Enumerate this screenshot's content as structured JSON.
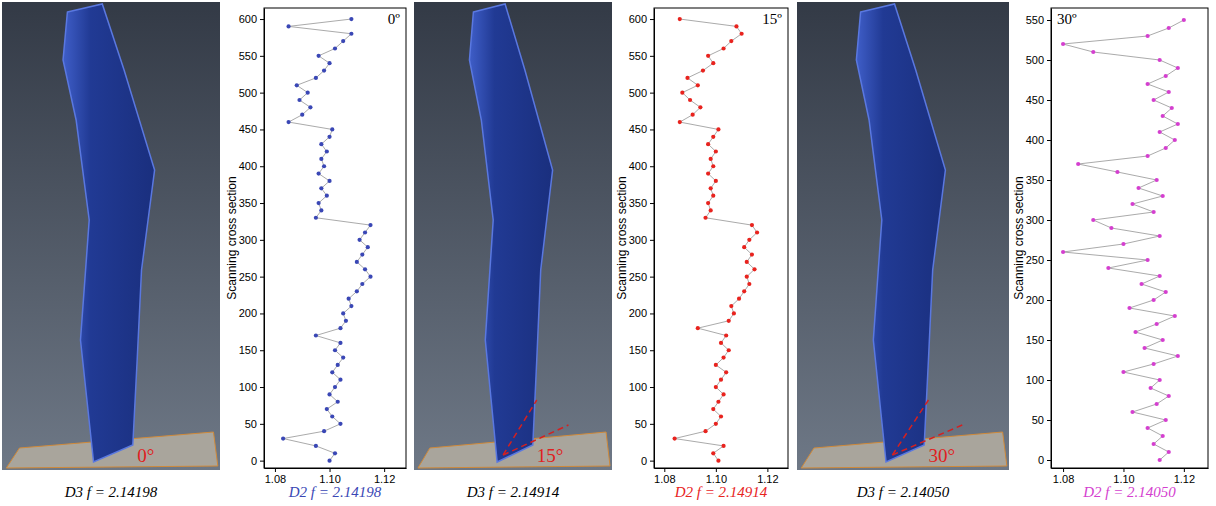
{
  "chart_data": [
    {
      "type": "scatter",
      "marker": "circle",
      "line_style": "solid",
      "color": "#3a47b5",
      "grid": false,
      "ylabel": "Scanning cross section",
      "annotation": "0º",
      "caption": "D2 f = 2.14198",
      "xlim": [
        1.076,
        1.128
      ],
      "xticks": [
        1.08,
        {
          "value": 1.1,
          "label": "1.10"
        },
        1.12
      ],
      "ylim": [
        -10,
        615
      ],
      "yticks": [
        0,
        50,
        100,
        150,
        200,
        250,
        300,
        350,
        400,
        450,
        500,
        550,
        600
      ],
      "x": [
        1.1,
        1.102,
        1.095,
        1.083,
        1.098,
        1.104,
        1.101,
        1.099,
        1.103,
        1.1,
        1.102,
        1.104,
        1.101,
        1.103,
        1.105,
        1.102,
        1.104,
        1.095,
        1.104,
        1.106,
        1.105,
        1.108,
        1.107,
        1.11,
        1.112,
        1.115,
        1.113,
        1.11,
        1.112,
        1.114,
        1.111,
        1.113,
        1.115,
        1.095,
        1.097,
        1.096,
        1.099,
        1.097,
        1.1,
        1.096,
        1.098,
        1.097,
        1.099,
        1.097,
        1.1,
        1.101,
        1.085,
        1.09,
        1.093,
        1.089,
        1.092,
        1.088,
        1.095,
        1.098,
        1.1,
        1.096,
        1.102,
        1.105,
        1.108,
        1.085,
        1.108
      ],
      "values": [
        0,
        10,
        20,
        30,
        40,
        50,
        60,
        70,
        80,
        90,
        100,
        110,
        120,
        130,
        140,
        150,
        160,
        170,
        180,
        190,
        200,
        210,
        220,
        230,
        240,
        250,
        260,
        270,
        280,
        290,
        300,
        310,
        320,
        330,
        340,
        350,
        360,
        370,
        380,
        390,
        400,
        410,
        420,
        430,
        440,
        450,
        460,
        470,
        480,
        490,
        500,
        510,
        520,
        530,
        540,
        550,
        560,
        570,
        580,
        590,
        600
      ]
    },
    {
      "type": "scatter",
      "marker": "circle",
      "line_style": "solid",
      "color": "#e8231e",
      "grid": false,
      "ylabel": "Scanning cross section",
      "annotation": "15º",
      "caption": "D2 f = 2.14914",
      "xlim": [
        1.076,
        1.128
      ],
      "xticks": [
        1.08,
        {
          "value": 1.1,
          "label": "1.10"
        },
        1.12
      ],
      "ylim": [
        -10,
        615
      ],
      "yticks": [
        0,
        50,
        100,
        150,
        200,
        250,
        300,
        350,
        400,
        450,
        500,
        550,
        600
      ],
      "x": [
        1.101,
        1.099,
        1.103,
        1.084,
        1.096,
        1.1,
        1.102,
        1.099,
        1.101,
        1.103,
        1.1,
        1.102,
        1.104,
        1.1,
        1.103,
        1.105,
        1.102,
        1.104,
        1.093,
        1.105,
        1.107,
        1.106,
        1.109,
        1.111,
        1.113,
        1.112,
        1.115,
        1.112,
        1.114,
        1.111,
        1.113,
        1.116,
        1.114,
        1.096,
        1.098,
        1.097,
        1.099,
        1.098,
        1.1,
        1.097,
        1.099,
        1.098,
        1.1,
        1.097,
        1.099,
        1.101,
        1.086,
        1.091,
        1.094,
        1.09,
        1.087,
        1.093,
        1.089,
        1.095,
        1.099,
        1.097,
        1.103,
        1.106,
        1.11,
        1.108,
        1.086
      ],
      "values": [
        0,
        10,
        20,
        30,
        40,
        50,
        60,
        70,
        80,
        90,
        100,
        110,
        120,
        130,
        140,
        150,
        160,
        170,
        180,
        190,
        200,
        210,
        220,
        230,
        240,
        250,
        260,
        270,
        280,
        290,
        300,
        310,
        320,
        330,
        340,
        350,
        360,
        370,
        380,
        390,
        400,
        410,
        420,
        430,
        440,
        450,
        460,
        470,
        480,
        490,
        500,
        510,
        520,
        530,
        540,
        550,
        560,
        570,
        580,
        590,
        600
      ]
    },
    {
      "type": "scatter",
      "marker": "circle",
      "line_style": "solid",
      "color": "#d43fcf",
      "grid": false,
      "ylabel": "Scanning cross section",
      "annotation": "30º",
      "caption": "D2 f = 2.14050",
      "xlim": [
        1.076,
        1.128
      ],
      "xticks": [
        1.08,
        {
          "value": 1.1,
          "label": "1.10"
        },
        1.12
      ],
      "ylim": [
        -10,
        565
      ],
      "yticks": [
        0,
        50,
        100,
        150,
        200,
        250,
        300,
        350,
        400,
        450,
        500,
        550
      ],
      "x": [
        1.112,
        1.115,
        1.11,
        1.113,
        1.108,
        1.114,
        1.103,
        1.111,
        1.115,
        1.109,
        1.112,
        1.1,
        1.11,
        1.118,
        1.107,
        1.113,
        1.104,
        1.111,
        1.117,
        1.102,
        1.11,
        1.114,
        1.106,
        1.112,
        1.095,
        1.108,
        1.08,
        1.1,
        1.112,
        1.096,
        1.09,
        1.11,
        1.103,
        1.113,
        1.105,
        1.111,
        1.098,
        1.085,
        1.108,
        1.114,
        1.117,
        1.112,
        1.118,
        1.113,
        1.116,
        1.11,
        1.115,
        1.108,
        1.114,
        1.118,
        1.112,
        1.09,
        1.08,
        1.108,
        1.115,
        1.12
      ],
      "values": [
        0,
        10,
        20,
        30,
        40,
        50,
        60,
        70,
        80,
        90,
        100,
        110,
        120,
        130,
        140,
        150,
        160,
        170,
        180,
        190,
        200,
        210,
        220,
        230,
        240,
        250,
        260,
        270,
        280,
        290,
        300,
        310,
        320,
        330,
        340,
        350,
        360,
        370,
        380,
        390,
        400,
        410,
        420,
        430,
        440,
        450,
        460,
        470,
        480,
        490,
        500,
        510,
        520,
        530,
        540,
        550
      ]
    }
  ],
  "images": [
    {
      "angle_label": "0°",
      "caption": "D3 f = 2.14198"
    },
    {
      "angle_label": "15°",
      "caption": "D3 f = 2.14914"
    },
    {
      "angle_label": "30°",
      "caption": "D3 f = 2.14050"
    }
  ]
}
